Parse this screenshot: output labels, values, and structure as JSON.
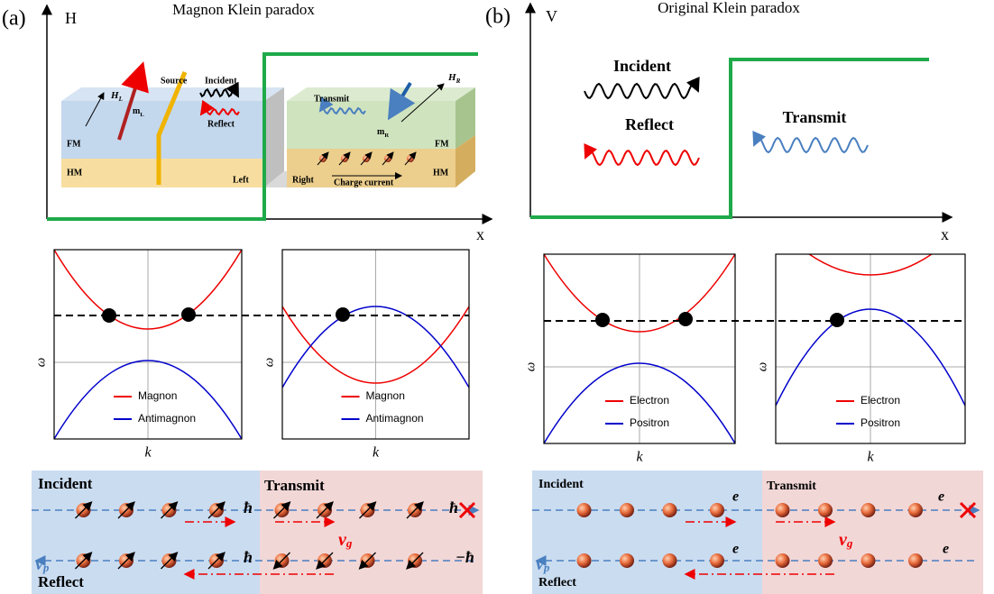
{
  "panel_a": {
    "label": "(a)",
    "axis_y": "H",
    "title": "Magnon Klein paradox",
    "axis_x": "x",
    "device": {
      "h_left": {
        "main": "H",
        "sub": "L"
      },
      "m_left": {
        "main": "m",
        "sub": "L"
      },
      "source": "Source",
      "incident": "Incident",
      "reflect": "Reflect",
      "fm_left": "FM",
      "hm_left": "HM",
      "left": "Left",
      "transmit": "Transmit",
      "m_right": {
        "main": "m",
        "sub": "R"
      },
      "h_right": {
        "main": "H",
        "sub": "R"
      },
      "fm_right": "FM",
      "hm_right": "HM",
      "right": "Right",
      "charge_current": "Charge current"
    },
    "bands": [
      {
        "y_label": "ω",
        "x_label": "k",
        "legend": [
          "Magnon",
          "Antimagnon"
        ]
      },
      {
        "y_label": "ω",
        "x_label": "k",
        "legend": [
          "Magnon",
          "Antimagnon"
        ]
      }
    ],
    "bottom": {
      "incident": "Incident",
      "transmit": "Transmit",
      "reflect": "Reflect",
      "v_p": {
        "main": "v",
        "sub": "p"
      },
      "v_g": {
        "main": "v",
        "sub": "g"
      },
      "quanta": [
        "ħ",
        "ħ",
        "ħ",
        "−ħ"
      ]
    }
  },
  "panel_b": {
    "label": "(b)",
    "axis_y": "V",
    "title": "Original Klein paradox",
    "axis_x": "x",
    "scene": {
      "incident": "Incident",
      "reflect": "Reflect",
      "transmit": "Transmit"
    },
    "bands": [
      {
        "y_label": "ω",
        "x_label": "k",
        "legend": [
          "Electron",
          "Positron"
        ]
      },
      {
        "y_label": "ω",
        "x_label": "k",
        "legend": [
          "Electron",
          "Positron"
        ]
      }
    ],
    "bottom": {
      "incident": "Incident",
      "transmit": "Transmit",
      "reflect": "Reflect",
      "v_p": {
        "main": "v",
        "sub": "p"
      },
      "v_g": {
        "main": "v",
        "sub": "g"
      },
      "quanta": [
        "e",
        "e",
        "e",
        "e"
      ]
    }
  }
}
